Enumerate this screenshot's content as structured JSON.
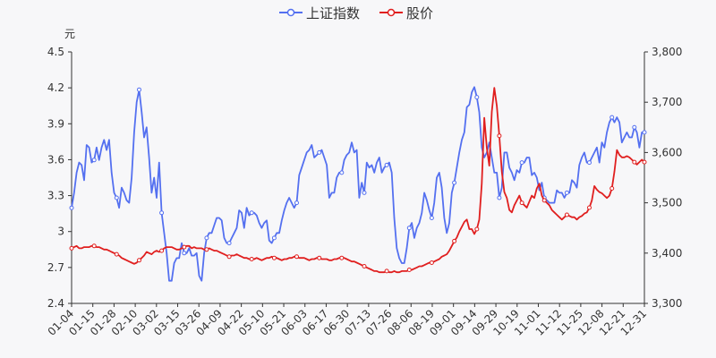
{
  "chart_data": {
    "type": "line",
    "legend": {
      "placement": "top-center"
    },
    "y_left": {
      "unit_label": "元",
      "ylim": [
        2.4,
        4.5
      ],
      "ticks": [
        "2.4",
        "2.7",
        "3",
        "3.3",
        "3.6",
        "3.9",
        "4.2",
        "4.5"
      ]
    },
    "y_right": {
      "ylim": [
        3300,
        3800
      ],
      "ticks": [
        "3,300",
        "3,400",
        "3,500",
        "3,600",
        "3,700",
        "3,800"
      ]
    },
    "x_ticks": [
      "01-04",
      "01-15",
      "01-28",
      "02-10",
      "03-02",
      "03-15",
      "03-26",
      "04-09",
      "04-22",
      "05-10",
      "05-21",
      "06-03",
      "06-17",
      "06-30",
      "07-13",
      "07-26",
      "08-06",
      "08-19",
      "09-01",
      "09-14",
      "09-29",
      "10-19",
      "11-01",
      "11-12",
      "11-25",
      "12-08",
      "12-21",
      "12-31"
    ],
    "grid": false,
    "series": [
      {
        "name": "上证指数",
        "axis": "right",
        "color": "#5470f0",
        "marker_every": 9,
        "values": [
          3490,
          3520,
          3560,
          3580,
          3575,
          3545,
          3615,
          3610,
          3580,
          3585,
          3610,
          3585,
          3610,
          3625,
          3605,
          3625,
          3560,
          3520,
          3510,
          3490,
          3530,
          3520,
          3505,
          3500,
          3550,
          3640,
          3700,
          3725,
          3680,
          3630,
          3650,
          3590,
          3520,
          3550,
          3510,
          3580,
          3480,
          3440,
          3400,
          3345,
          3345,
          3380,
          3390,
          3390,
          3420,
          3400,
          3400,
          3410,
          3395,
          3395,
          3400,
          3355,
          3345,
          3400,
          3430,
          3440,
          3440,
          3455,
          3470,
          3470,
          3465,
          3430,
          3420,
          3420,
          3430,
          3440,
          3450,
          3485,
          3480,
          3450,
          3490,
          3475,
          3480,
          3480,
          3475,
          3460,
          3450,
          3460,
          3465,
          3425,
          3420,
          3430,
          3440,
          3440,
          3465,
          3485,
          3500,
          3510,
          3500,
          3490,
          3500,
          3555,
          3570,
          3585,
          3600,
          3605,
          3615,
          3590,
          3595,
          3600,
          3605,
          3590,
          3575,
          3510,
          3520,
          3520,
          3550,
          3560,
          3560,
          3585,
          3595,
          3600,
          3620,
          3600,
          3605,
          3510,
          3540,
          3520,
          3580,
          3570,
          3575,
          3560,
          3580,
          3590,
          3560,
          3570,
          3575,
          3580,
          3560,
          3470,
          3410,
          3390,
          3380,
          3380,
          3410,
          3450,
          3460,
          3430,
          3450,
          3460,
          3480,
          3520,
          3505,
          3485,
          3470,
          3500,
          3550,
          3560,
          3530,
          3470,
          3440,
          3460,
          3520,
          3540,
          3570,
          3600,
          3625,
          3640,
          3690,
          3695,
          3720,
          3730,
          3710,
          3680,
          3610,
          3590,
          3600,
          3620,
          3590,
          3560,
          3560,
          3510,
          3530,
          3600,
          3600,
          3570,
          3560,
          3545,
          3565,
          3560,
          3580,
          3580,
          3590,
          3590,
          3555,
          3560,
          3550,
          3525,
          3540,
          3510,
          3505,
          3500,
          3500,
          3500,
          3525,
          3520,
          3520,
          3510,
          3520,
          3520,
          3545,
          3540,
          3530,
          3575,
          3590,
          3600,
          3580,
          3580,
          3590,
          3600,
          3610,
          3580,
          3620,
          3610,
          3640,
          3660,
          3670,
          3660,
          3670,
          3660,
          3620,
          3630,
          3640,
          3630,
          3630,
          3650,
          3640,
          3610,
          3640,
          3640
        ]
      },
      {
        "name": "股价",
        "axis": "left",
        "color": "#e01f1f",
        "marker_every": 9,
        "values": [
          2.86,
          2.87,
          2.88,
          2.86,
          2.86,
          2.87,
          2.87,
          2.87,
          2.88,
          2.88,
          2.87,
          2.87,
          2.86,
          2.85,
          2.85,
          2.84,
          2.83,
          2.82,
          2.81,
          2.8,
          2.78,
          2.77,
          2.76,
          2.75,
          2.74,
          2.73,
          2.74,
          2.76,
          2.78,
          2.8,
          2.83,
          2.82,
          2.81,
          2.83,
          2.84,
          2.83,
          2.84,
          2.86,
          2.87,
          2.87,
          2.87,
          2.86,
          2.85,
          2.85,
          2.86,
          2.87,
          2.88,
          2.88,
          2.86,
          2.87,
          2.86,
          2.86,
          2.86,
          2.85,
          2.85,
          2.86,
          2.85,
          2.84,
          2.84,
          2.83,
          2.82,
          2.81,
          2.8,
          2.79,
          2.8,
          2.8,
          2.81,
          2.8,
          2.79,
          2.78,
          2.78,
          2.77,
          2.77,
          2.77,
          2.78,
          2.77,
          2.76,
          2.77,
          2.78,
          2.78,
          2.79,
          2.78,
          2.78,
          2.77,
          2.76,
          2.77,
          2.77,
          2.78,
          2.78,
          2.79,
          2.79,
          2.78,
          2.78,
          2.78,
          2.77,
          2.76,
          2.77,
          2.77,
          2.78,
          2.78,
          2.77,
          2.77,
          2.77,
          2.76,
          2.76,
          2.77,
          2.77,
          2.78,
          2.78,
          2.78,
          2.77,
          2.76,
          2.75,
          2.75,
          2.74,
          2.73,
          2.72,
          2.71,
          2.7,
          2.69,
          2.68,
          2.67,
          2.67,
          2.66,
          2.66,
          2.66,
          2.67,
          2.66,
          2.66,
          2.67,
          2.66,
          2.66,
          2.67,
          2.67,
          2.67,
          2.68,
          2.68,
          2.69,
          2.7,
          2.71,
          2.71,
          2.72,
          2.73,
          2.74,
          2.74,
          2.75,
          2.76,
          2.77,
          2.79,
          2.8,
          2.81,
          2.84,
          2.88,
          2.92,
          2.95,
          3.0,
          3.04,
          3.08,
          3.1,
          3.02,
          3.02,
          2.98,
          3.02,
          3.1,
          3.4,
          3.95,
          3.7,
          3.55,
          4.0,
          4.2,
          4.05,
          3.8,
          3.5,
          3.33,
          3.28,
          3.18,
          3.16,
          3.22,
          3.26,
          3.3,
          3.24,
          3.22,
          3.2,
          3.25,
          3.3,
          3.28,
          3.36,
          3.4,
          3.3,
          3.26,
          3.24,
          3.22,
          3.18,
          3.16,
          3.14,
          3.12,
          3.1,
          3.12,
          3.14,
          3.13,
          3.12,
          3.12,
          3.1,
          3.12,
          3.13,
          3.15,
          3.16,
          3.2,
          3.26,
          3.38,
          3.35,
          3.33,
          3.32,
          3.3,
          3.28,
          3.3,
          3.36,
          3.5,
          3.68,
          3.64,
          3.62,
          3.62,
          3.63,
          3.62,
          3.6,
          3.58,
          3.56,
          3.58,
          3.6,
          3.58
        ]
      }
    ]
  }
}
